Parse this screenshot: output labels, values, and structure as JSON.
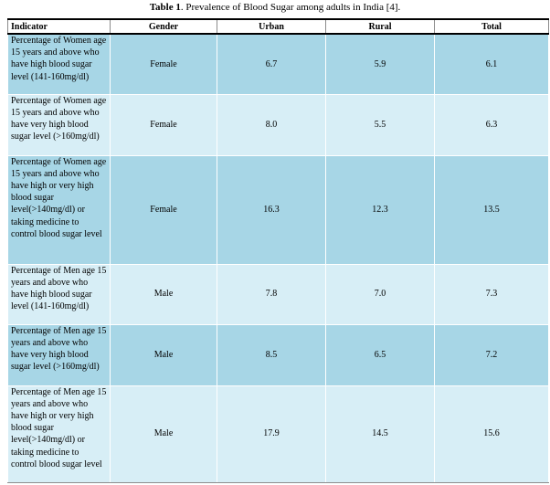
{
  "caption": {
    "label": "Table 1",
    "text": ". Prevalence of Blood Sugar among adults in India [4]."
  },
  "headers": {
    "indicator": "Indicator",
    "gender": "Gender",
    "urban": "Urban",
    "rural": "Rural",
    "total": "Total"
  },
  "rows": [
    {
      "indicator": "Percentage of Women age 15 years and above who have high blood sugar level (141-160mg/dl)",
      "gender": "Female",
      "urban": "6.7",
      "rural": "5.9",
      "total": "6.1"
    },
    {
      "indicator": "Percentage of Women age 15 years and above who have very high blood sugar level (>160mg/dl)",
      "gender": "Female",
      "urban": "8.0",
      "rural": "5.5",
      "total": "6.3"
    },
    {
      "indicator": "Percentage of Women age 15 years and above who have high or very high blood sugar level(>140mg/dl) or taking medicine to control blood sugar level",
      "gender": "Female",
      "urban": "16.3",
      "rural": "12.3",
      "total": "13.5"
    },
    {
      "indicator": "Percentage of Men age 15 years and above who have high blood sugar level (141-160mg/dl)",
      "gender": "Male",
      "urban": "7.8",
      "rural": "7.0",
      "total": "7.3"
    },
    {
      "indicator": "Percentage of Men age 15 years and above who have very high blood sugar level (>160mg/dl)",
      "gender": "Male",
      "urban": "8.5",
      "rural": "6.5",
      "total": "7.2"
    },
    {
      "indicator": "Percentage of Men age 15 years and above who have high or very high blood sugar level(>140mg/dl) or taking medicine to control blood sugar level",
      "gender": "Male",
      "urban": "17.9",
      "rural": "14.5",
      "total": "15.6"
    }
  ]
}
